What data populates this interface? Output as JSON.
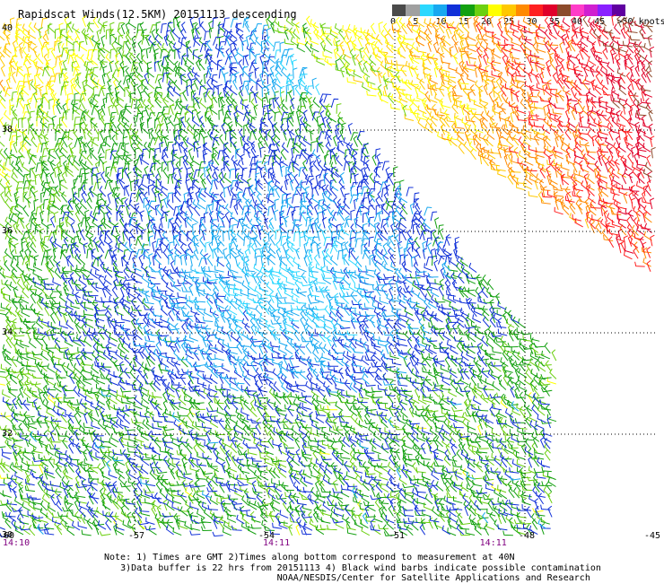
{
  "title": "Rapidscat Winds(12.5KM) 20151113 descending",
  "color_scale": {
    "colors": [
      "#4a4a4a",
      "#a0a0a0",
      "#2bd8ff",
      "#17a8f0",
      "#1030d8",
      "#13a010",
      "#6cd010",
      "#ffff00",
      "#ffc800",
      "#ff8a00",
      "#ff2020",
      "#e0002a",
      "#8c4a2a",
      "#ff3cc8",
      "#d020d0",
      "#8a20ff",
      "#6000a0"
    ],
    "labels": [
      {
        "text": "0",
        "v": 0
      },
      {
        "text": "5",
        "v": 5
      },
      {
        "text": "10",
        "v": 10
      },
      {
        "text": "15",
        "v": 15
      },
      {
        "text": "20",
        "v": 20
      },
      {
        "text": "25",
        "v": 25
      },
      {
        "text": "30",
        "v": 30
      },
      {
        "text": "35",
        "v": 35
      },
      {
        "text": "40",
        "v": 40
      },
      {
        "text": "45",
        "v": 45
      },
      {
        "text": ">50 knots",
        "v": 50
      }
    ]
  },
  "y_axis": [
    {
      "text": "40",
      "lat": 40
    },
    {
      "text": "38",
      "lat": 38
    },
    {
      "text": "36",
      "lat": 36
    },
    {
      "text": "34",
      "lat": 34
    },
    {
      "text": "32",
      "lat": 32
    },
    {
      "text": "30",
      "lat": 30
    }
  ],
  "x_axis": [
    {
      "text": "-60",
      "lon": -60
    },
    {
      "text": "-57",
      "lon": -57
    },
    {
      "text": "-54",
      "lon": -54
    },
    {
      "text": "-51",
      "lon": -51
    },
    {
      "text": "-48",
      "lon": -48
    },
    {
      "text": "-45",
      "lon": -45
    }
  ],
  "time_labels": [
    {
      "text": "14:10",
      "lon": -60
    },
    {
      "text": "14:11",
      "lon": -54
    },
    {
      "text": "14:11",
      "lon": -49
    }
  ],
  "notes": [
    "Note: 1) Times are GMT 2)Times along bottom correspond to measurement at 40N",
    "3)Data buffer is 22 hrs from 20151113 4) Black wind barbs indicate possible contamination",
    "NOAA/NESDIS/Center for Satellite Applications and Research"
  ]
}
